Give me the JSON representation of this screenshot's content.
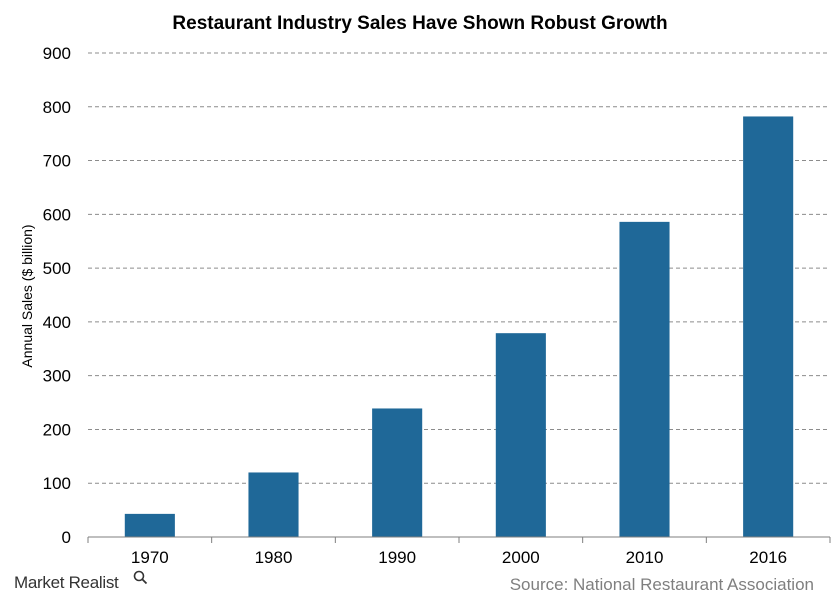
{
  "chart_data": {
    "type": "bar",
    "title": "Restaurant  Industry  Sales Have Shown Robust Growth",
    "ylabel": "Annual Sales ($ billion)",
    "xlabel": "",
    "categories": [
      "1970",
      "1980",
      "1990",
      "2000",
      "2010",
      "2016"
    ],
    "values": [
      43,
      120,
      239,
      379,
      586,
      782
    ],
    "ylim": [
      0,
      900
    ],
    "yticks": [
      "0",
      "100",
      "200",
      "300",
      "400",
      "500",
      "600",
      "700",
      "800",
      "900"
    ],
    "grid": true,
    "bar_color": "#1f6898"
  },
  "source_text": "Source: National Restaurant Association",
  "brand_text": "Market Realist",
  "brand_icon": "magnifier-icon"
}
